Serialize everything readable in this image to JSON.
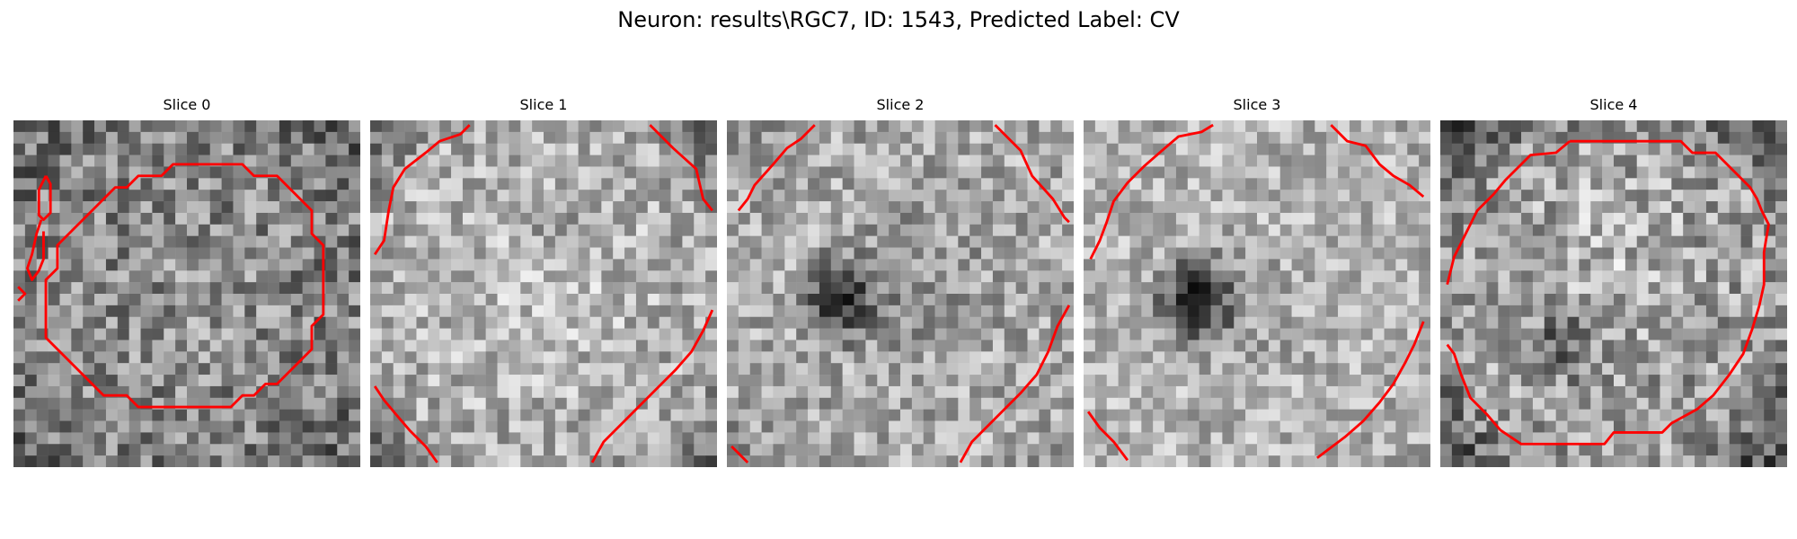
{
  "title": "Neuron: results\\RGC7, ID: 1543, Predicted Label: CV",
  "panels": [
    {
      "label": "Slice 0"
    },
    {
      "label": "Slice 1"
    },
    {
      "label": "Slice 2"
    },
    {
      "label": "Slice 3"
    },
    {
      "label": "Slice 4"
    }
  ],
  "colors": {
    "contour": "#ff0000",
    "background": "#ffffff"
  },
  "colormap": "gray"
}
